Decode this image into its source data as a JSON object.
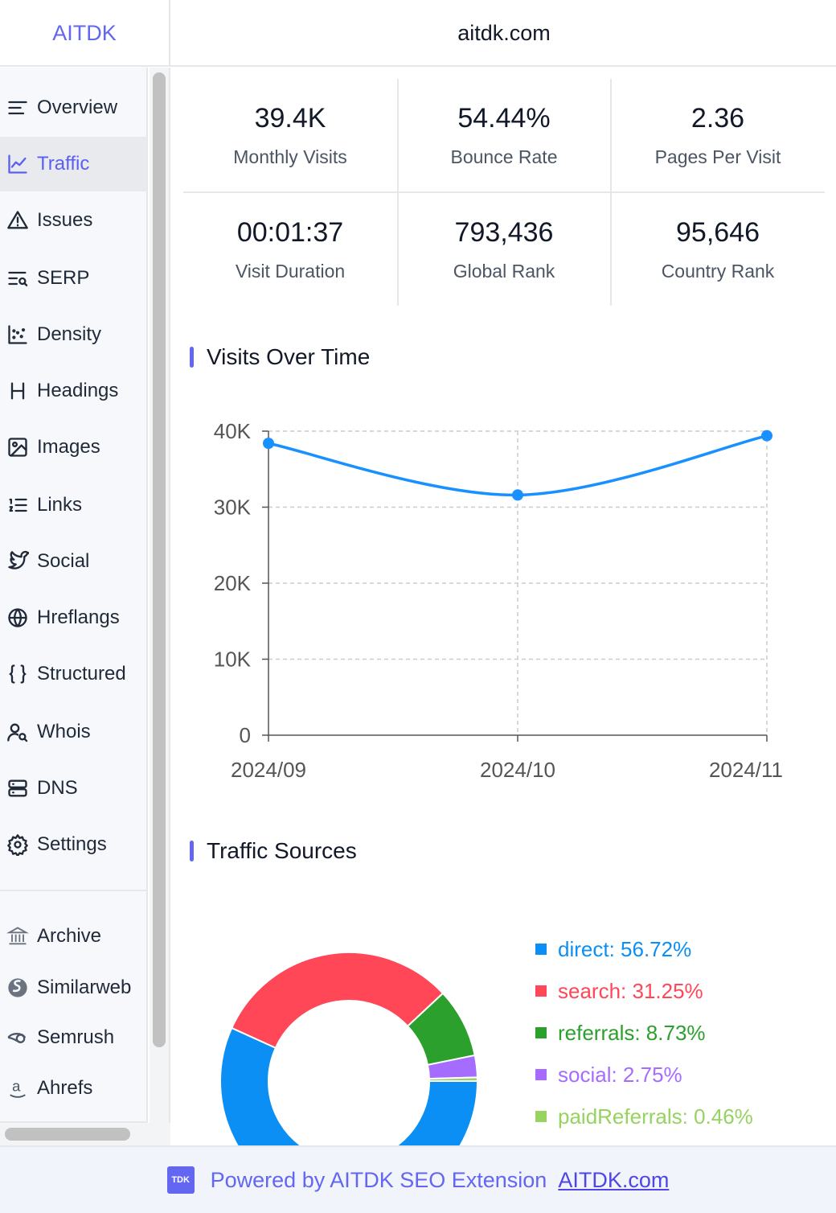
{
  "app": {
    "brand": "AITDK",
    "domain": "aitdk.com"
  },
  "sidebar": {
    "items": [
      {
        "label": "Overview",
        "icon": "overview-icon"
      },
      {
        "label": "Traffic",
        "icon": "chart-line-icon",
        "active": true
      },
      {
        "label": "Issues",
        "icon": "warning-icon"
      },
      {
        "label": "SERP",
        "icon": "serp-search-icon"
      },
      {
        "label": "Density",
        "icon": "scatter-icon"
      },
      {
        "label": "Headings",
        "icon": "heading-icon"
      },
      {
        "label": "Images",
        "icon": "image-icon"
      },
      {
        "label": "Links",
        "icon": "list-icon"
      },
      {
        "label": "Social",
        "icon": "twitter-icon"
      },
      {
        "label": "Hreflangs",
        "icon": "globe-icon"
      },
      {
        "label": "Structured",
        "icon": "braces-icon"
      },
      {
        "label": "Whois",
        "icon": "user-search-icon"
      },
      {
        "label": "DNS",
        "icon": "server-icon"
      },
      {
        "label": "Settings",
        "icon": "gear-icon"
      }
    ],
    "external": [
      {
        "label": "Archive",
        "icon": "archive-icon"
      },
      {
        "label": "Similarweb",
        "icon": "similarweb-icon"
      },
      {
        "label": "Semrush",
        "icon": "semrush-icon"
      },
      {
        "label": "Ahrefs",
        "icon": "amazon-a-icon"
      }
    ]
  },
  "stats": [
    {
      "value": "39.4K",
      "label": "Monthly Visits"
    },
    {
      "value": "54.44%",
      "label": "Bounce Rate"
    },
    {
      "value": "2.36",
      "label": "Pages Per Visit"
    },
    {
      "value": "00:01:37",
      "label": "Visit Duration"
    },
    {
      "value": "793,436",
      "label": "Global Rank"
    },
    {
      "value": "95,646",
      "label": "Country Rank"
    }
  ],
  "sections": {
    "visits_title": "Visits Over Time",
    "sources_title": "Traffic Sources"
  },
  "chart_data": [
    {
      "type": "line",
      "title": "Visits Over Time",
      "categories": [
        "2024/09",
        "2024/10",
        "2024/11"
      ],
      "values": [
        38400,
        31600,
        39400
      ],
      "ylim": [
        0,
        40000
      ],
      "yticks": [
        0,
        10000,
        20000,
        30000,
        40000
      ],
      "ytick_labels": [
        "0",
        "10K",
        "20K",
        "30K",
        "40K"
      ],
      "color": "#1890ff",
      "grid": true
    },
    {
      "type": "pie",
      "title": "Traffic Sources",
      "donut": true,
      "slices": [
        {
          "name": "direct",
          "value": 56.72,
          "label": "direct: 56.72%",
          "color": "#0b8ff5"
        },
        {
          "name": "search",
          "value": 31.25,
          "label": "search: 31.25%",
          "color": "#ff4757"
        },
        {
          "name": "referrals",
          "value": 8.73,
          "label": "referrals: 8.73%",
          "color": "#2ca02c"
        },
        {
          "name": "social",
          "value": 2.75,
          "label": "social: 2.75%",
          "color": "#a66cff"
        },
        {
          "name": "paidReferrals",
          "value": 0.46,
          "label": "paidReferrals: 0.46%",
          "color": "#96d35f"
        }
      ]
    }
  ],
  "footer": {
    "logo_text": "TDK",
    "text": "Powered by AITDK SEO Extension",
    "link": "AITDK.com"
  }
}
